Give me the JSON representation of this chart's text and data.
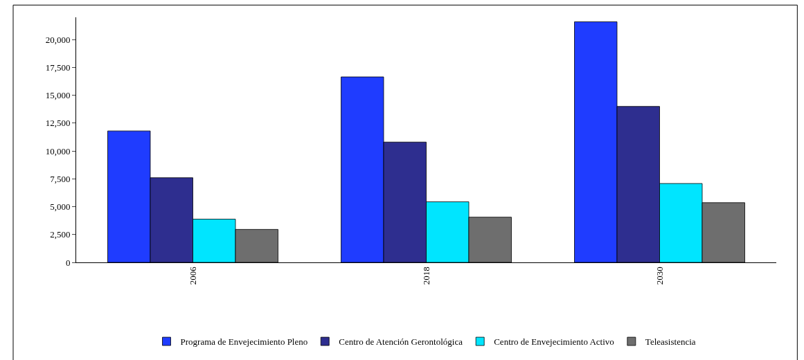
{
  "chart_data": {
    "type": "bar",
    "categories": [
      "2006",
      "2018",
      "2030"
    ],
    "series": [
      {
        "name": "Programa de Envejecimiento Pleno",
        "color": "#1f3cff",
        "values": [
          11800,
          16650,
          21600
        ]
      },
      {
        "name": "Centro de Atención Gerontológica",
        "color": "#2e2e8f",
        "values": [
          7600,
          10800,
          14000
        ]
      },
      {
        "name": "Centro de Envejecimiento Activo",
        "color": "#00e5ff",
        "values": [
          3880,
          5440,
          7080
        ]
      },
      {
        "name": "Teleasistencia",
        "color": "#6e6e6e",
        "values": [
          2960,
          4060,
          5360
        ]
      }
    ],
    "ylim": [
      0,
      22000
    ],
    "yticks": [
      {
        "value": 0,
        "label": "0"
      },
      {
        "value": 2500,
        "label": "2,500"
      },
      {
        "value": 5000,
        "label": "5,000"
      },
      {
        "value": 7500,
        "label": "7,500"
      },
      {
        "value": 10000,
        "label": "10,000"
      },
      {
        "value": 12500,
        "label": "12,500"
      },
      {
        "value": 15000,
        "label": "15,000"
      },
      {
        "value": 17500,
        "label": "17,500"
      },
      {
        "value": 20000,
        "label": "20,000"
      }
    ],
    "legend": "bottom"
  }
}
